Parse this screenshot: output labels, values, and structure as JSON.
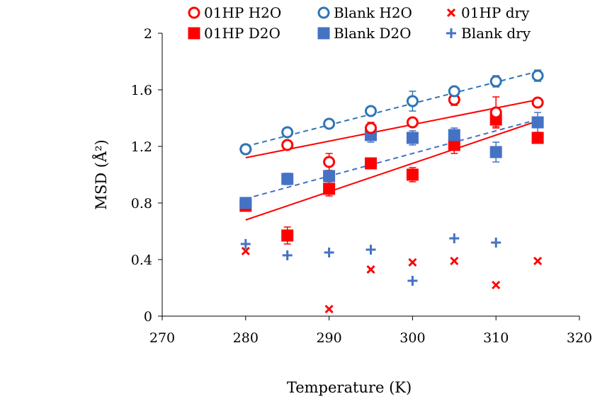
{
  "chart_data": {
    "type": "scatter",
    "title": "",
    "xlabel": "Temperature (K)",
    "ylabel": "MSD (Å²)",
    "xlim": [
      270,
      320
    ],
    "ylim": [
      0,
      2
    ],
    "xticks": [
      "270",
      "280",
      "290",
      "300",
      "310",
      "320"
    ],
    "yticks": [
      "0",
      "0.4",
      "0.8",
      "1.2",
      "1.6",
      "2"
    ],
    "xtick_values": [
      270,
      280,
      290,
      300,
      310,
      320
    ],
    "ytick_values": [
      0,
      0.4,
      0.8,
      1.2,
      1.6,
      2.0
    ],
    "grid": false,
    "legend_position": "top",
    "series": [
      {
        "name": "01HP H2O",
        "marker": "open-circle",
        "color": "#ff0000",
        "x": [
          280,
          285,
          290,
          295,
          300,
          305,
          310,
          315
        ],
        "y": [
          1.18,
          1.21,
          1.09,
          1.33,
          1.37,
          1.53,
          1.44,
          1.51
        ],
        "error": [
          0.03,
          0.02,
          0.06,
          0.04,
          0.03,
          0.04,
          0.11,
          0.03
        ],
        "trendline": {
          "style": "solid",
          "y_start": 1.12,
          "y_end": 1.53
        }
      },
      {
        "name": "Blank H2O",
        "marker": "open-circle",
        "color": "#2e75b6",
        "x": [
          280,
          285,
          290,
          295,
          300,
          305,
          310,
          315
        ],
        "y": [
          1.18,
          1.3,
          1.36,
          1.45,
          1.52,
          1.59,
          1.66,
          1.7
        ],
        "error": [
          0.03,
          0.03,
          0.03,
          0.03,
          0.07,
          0.03,
          0.04,
          0.04
        ],
        "trendline": {
          "style": "dashed",
          "y_start": 1.2,
          "y_end": 1.73
        }
      },
      {
        "name": "01HP dry",
        "marker": "x",
        "color": "#ff0000",
        "x": [
          280,
          290,
          295,
          300,
          305,
          310,
          315
        ],
        "y": [
          0.46,
          0.05,
          0.33,
          0.38,
          0.39,
          0.22,
          0.39
        ],
        "error": [],
        "trendline": null
      },
      {
        "name": "01HP D2O",
        "marker": "filled-square",
        "color": "#ff0000",
        "x": [
          280,
          285,
          290,
          295,
          300,
          305,
          310,
          315
        ],
        "y": [
          0.78,
          0.57,
          0.9,
          1.08,
          1.0,
          1.21,
          1.39,
          1.26
        ],
        "error": [
          0.02,
          0.06,
          0.05,
          0.02,
          0.05,
          0.06,
          0.05,
          0.02
        ],
        "trendline": {
          "style": "solid",
          "y_start": 0.68,
          "y_end": 1.38
        }
      },
      {
        "name": "Blank D2O",
        "marker": "filled-square",
        "color": "#4472c4",
        "x": [
          280,
          285,
          290,
          295,
          300,
          305,
          310,
          315
        ],
        "y": [
          0.8,
          0.97,
          0.99,
          1.28,
          1.26,
          1.28,
          1.16,
          1.37
        ],
        "error": [
          0.02,
          0.04,
          0.04,
          0.05,
          0.05,
          0.05,
          0.07,
          0.07
        ],
        "trendline": {
          "style": "dashed",
          "y_start": 0.83,
          "y_end": 1.39
        }
      },
      {
        "name": "Blank dry",
        "marker": "plus",
        "color": "#4472c4",
        "x": [
          280,
          285,
          290,
          295,
          300,
          305,
          310
        ],
        "y": [
          0.51,
          0.43,
          0.45,
          0.47,
          0.25,
          0.55,
          0.52
        ],
        "error": [],
        "trendline": null
      }
    ],
    "legend_rows": [
      [
        "01HP H2O",
        "Blank H2O",
        "01HP dry"
      ],
      [
        "01HP D2O",
        "Blank D2O",
        "Blank dry"
      ]
    ]
  }
}
